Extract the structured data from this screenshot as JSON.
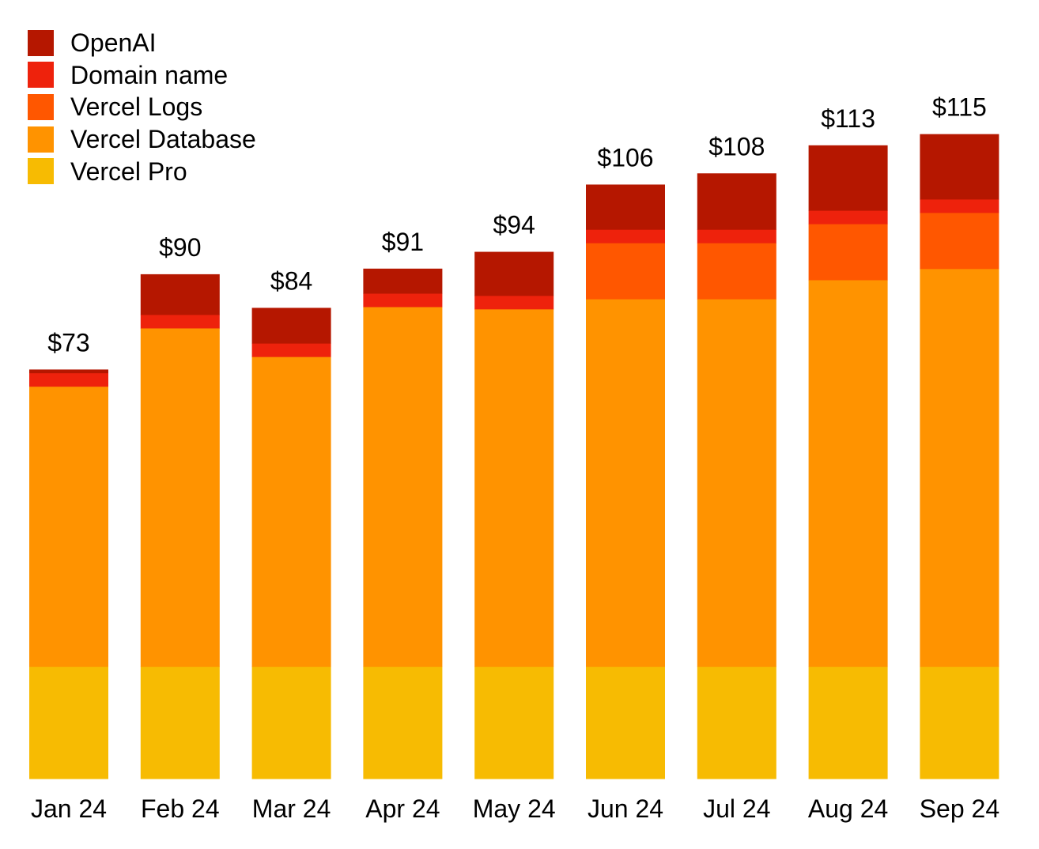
{
  "chart_data": {
    "type": "bar",
    "stacked": true,
    "title": "",
    "xlabel": "",
    "ylabel": "",
    "ylim": [
      0,
      115
    ],
    "grid": false,
    "legend_position": "top-left",
    "categories": [
      "Jan 24",
      "Feb 24",
      "Mar 24",
      "Apr 24",
      "May 24",
      "Jun 24",
      "Jul 24",
      "Aug 24",
      "Sep 24"
    ],
    "totals": [
      "$73",
      "$90",
      "$84",
      "$91",
      "$94",
      "$106",
      "$108",
      "$113",
      "$115"
    ],
    "series": [
      {
        "name": "Vercel Pro",
        "color": "#F7BB02",
        "values": [
          20,
          20,
          20,
          20,
          20,
          20,
          20,
          20,
          20
        ]
      },
      {
        "name": "Vercel Database",
        "color": "#FF9300",
        "values": [
          50,
          60.4,
          55.3,
          64.2,
          63.8,
          65.6,
          65.6,
          69,
          71
        ]
      },
      {
        "name": "Vercel Logs",
        "color": "#FF5700",
        "values": [
          0,
          0,
          0,
          0,
          0,
          10,
          10,
          10,
          10
        ]
      },
      {
        "name": "Domain name",
        "color": "#EE220C",
        "values": [
          2.4,
          2.4,
          2.4,
          2.4,
          2.4,
          2.4,
          2.4,
          2.4,
          2.4
        ]
      },
      {
        "name": "OpenAI",
        "color": "#B51700",
        "values": [
          0.6,
          7.2,
          6.3,
          4.4,
          7.8,
          8,
          10,
          11.6,
          11.6
        ]
      }
    ]
  },
  "legend": [
    {
      "label": "OpenAI",
      "color": "#B51700"
    },
    {
      "label": "Domain name",
      "color": "#EE220C"
    },
    {
      "label": "Vercel Logs",
      "color": "#FF5700"
    },
    {
      "label": "Vercel Database",
      "color": "#FF9300"
    },
    {
      "label": "Vercel Pro",
      "color": "#F7BB02"
    }
  ]
}
